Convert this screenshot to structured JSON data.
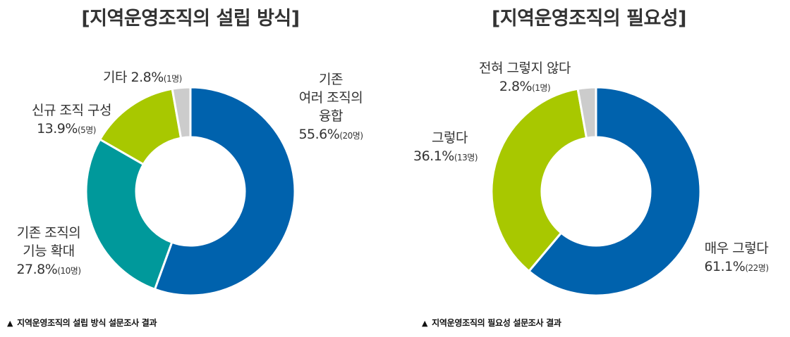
{
  "chart_data": [
    {
      "type": "pie",
      "subtype": "donut",
      "title": "[지역운영조직의 설립 방식]",
      "caption": "지역운영조직의 설립 방식 설문조사 결과",
      "start_angle": "12 o'clock, clockwise",
      "slices": [
        {
          "label": "기존 여러 조직의 융합",
          "label_lines": [
            "기존",
            "여러 조직의",
            "융합"
          ],
          "percent": 55.6,
          "percent_text": "55.6%",
          "count": 20,
          "count_text": "(20명)",
          "color": "#0062ad"
        },
        {
          "label": "기존 조직의 기능 확대",
          "label_lines": [
            "기존 조직의",
            "기능 확대"
          ],
          "percent": 27.8,
          "percent_text": "27.8%",
          "count": 10,
          "count_text": "(10명)",
          "color": "#00999b"
        },
        {
          "label": "신규 조직 구성",
          "label_lines": [
            "신규 조직 구성"
          ],
          "percent": 13.9,
          "percent_text": "13.9%",
          "count": 5,
          "count_text": "(5명)",
          "color": "#a8c800"
        },
        {
          "label": "기타",
          "label_lines": [
            "기타"
          ],
          "percent": 2.8,
          "percent_text": "2.8%",
          "count": 1,
          "count_text": "(1명)",
          "color": "#cccccc"
        }
      ],
      "legend": "none (inline labels)"
    },
    {
      "type": "pie",
      "subtype": "donut",
      "title": "[지역운영조직의 필요성]",
      "caption": "지역운영조직의 필요성 설문조사 결과",
      "start_angle": "12 o'clock, clockwise",
      "slices": [
        {
          "label": "매우 그렇다",
          "label_lines": [
            "매우 그렇다"
          ],
          "percent": 61.1,
          "percent_text": "61.1%",
          "count": 22,
          "count_text": "(22명)",
          "color": "#0062ad"
        },
        {
          "label": "그렇다",
          "label_lines": [
            "그렇다"
          ],
          "percent": 36.1,
          "percent_text": "36.1%",
          "count": 13,
          "count_text": "(13명)",
          "color": "#a8c800"
        },
        {
          "label": "전혀 그렇지 않다",
          "label_lines": [
            "전혀 그렇지 않다"
          ],
          "percent": 2.8,
          "percent_text": "2.8%",
          "count": 1,
          "count_text": "(1명)",
          "color": "#cccccc"
        }
      ],
      "legend": "none (inline labels)"
    }
  ],
  "ui": {
    "caption_marker": "▲"
  }
}
